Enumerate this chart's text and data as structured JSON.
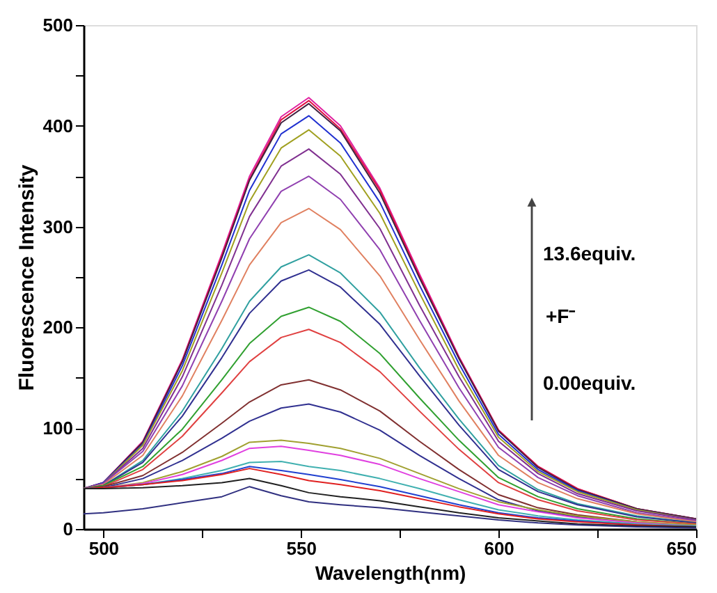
{
  "chart_data": {
    "type": "line",
    "xlabel": "Wavelength(nm)",
    "ylabel": "Fluorescence Intensity",
    "x": [
      495,
      500,
      510,
      520,
      530,
      537,
      545,
      552,
      560,
      570,
      580,
      590,
      600,
      610,
      620,
      635,
      650
    ],
    "xlim": [
      495,
      650
    ],
    "xticks": [
      500,
      {
        "value": 525,
        "label": null
      },
      550,
      {
        "value": 575,
        "label": null
      },
      600,
      {
        "value": 625,
        "label": null
      },
      650
    ],
    "ylim": [
      0,
      500
    ],
    "yticks": [
      0,
      {
        "value": 50,
        "label": null
      },
      100,
      {
        "value": 150,
        "label": null
      },
      200,
      {
        "value": 250,
        "label": null
      },
      300,
      {
        "value": 350,
        "label": null
      },
      400,
      {
        "value": 450,
        "label": null
      },
      500
    ],
    "grid": false,
    "marker": "none",
    "line_style": "solid",
    "annotations": [
      "13.6equiv.",
      "+F⁻",
      "0.00equiv."
    ],
    "series": [
      {
        "color": "#e020a0",
        "values": [
          40,
          46,
          87,
          168,
          273,
          350,
          409,
          428,
          400,
          338,
          253,
          171,
          98,
          62,
          40,
          20,
          10
        ]
      },
      {
        "color": "#e01040",
        "values": [
          40,
          46,
          86,
          167,
          271,
          347,
          406,
          425,
          397,
          336,
          251,
          170,
          98,
          62,
          40,
          20,
          10
        ]
      },
      {
        "color": "#402040",
        "values": [
          40,
          46,
          86,
          166,
          269,
          346,
          403,
          422,
          395,
          333,
          249,
          169,
          97,
          61,
          39,
          20,
          10
        ]
      },
      {
        "color": "#2030d0",
        "values": [
          40,
          46,
          84,
          162,
          262,
          336,
          392,
          410,
          383,
          324,
          242,
          164,
          94,
          59,
          38,
          19,
          9
        ]
      },
      {
        "color": "#a0a020",
        "values": [
          40,
          45,
          83,
          157,
          254,
          325,
          378,
          396,
          370,
          313,
          234,
          158,
          91,
          57,
          37,
          19,
          9
        ]
      },
      {
        "color": "#803090",
        "values": [
          40,
          45,
          80,
          151,
          242,
          310,
          360,
          377,
          352,
          298,
          222,
          151,
          87,
          55,
          35,
          18,
          9
        ]
      },
      {
        "color": "#9040b0",
        "values": [
          40,
          45,
          77,
          142,
          226,
          288,
          335,
          350,
          327,
          277,
          207,
          140,
          81,
          51,
          33,
          16,
          8
        ]
      },
      {
        "color": "#e08060",
        "values": [
          40,
          44,
          73,
          132,
          207,
          262,
          304,
          318,
          297,
          251,
          188,
          127,
          73,
          46,
          30,
          15,
          7
        ]
      },
      {
        "color": "#30a0a0",
        "values": [
          40,
          43,
          68,
          117,
          179,
          226,
          260,
          272,
          254,
          215,
          160,
          109,
          63,
          39,
          25,
          13,
          6
        ]
      },
      {
        "color": "#303090",
        "values": [
          40,
          43,
          66,
          112,
          170,
          214,
          246,
          257,
          240,
          203,
          152,
          103,
          59,
          37,
          24,
          12,
          6
        ]
      },
      {
        "color": "#30a030",
        "values": [
          40,
          43,
          62,
          99,
          148,
          184,
          211,
          220,
          206,
          174,
          130,
          88,
          51,
          32,
          20,
          10,
          5
        ]
      },
      {
        "color": "#e04040",
        "values": [
          40,
          42,
          59,
          92,
          135,
          166,
          190,
          198,
          185,
          156,
          117,
          79,
          46,
          29,
          18,
          9,
          5
        ]
      },
      {
        "color": "#803030",
        "values": [
          40,
          42,
          53,
          76,
          105,
          126,
          143,
          148,
          138,
          117,
          87,
          59,
          34,
          21,
          14,
          7,
          3
        ]
      },
      {
        "color": "#303090",
        "values": [
          40,
          41,
          50,
          68,
          90,
          107,
          120,
          124,
          116,
          98,
          73,
          50,
          29,
          18,
          12,
          6,
          3
        ]
      },
      {
        "color": "#a0a030",
        "values": [
          40,
          41,
          46,
          57,
          72,
          86,
          88,
          85,
          80,
          70,
          55,
          40,
          27,
          19,
          13,
          7,
          4
        ]
      },
      {
        "color": "#e040e0",
        "values": [
          40,
          41,
          45,
          54,
          68,
          80,
          82,
          78,
          73,
          64,
          50,
          37,
          24,
          17,
          11,
          6,
          3
        ]
      },
      {
        "color": "#40b0b0",
        "values": [
          40,
          41,
          44,
          50,
          58,
          66,
          67,
          62,
          58,
          50,
          40,
          29,
          19,
          13,
          9,
          5,
          3
        ]
      },
      {
        "color": "#2040d0",
        "values": [
          40,
          41,
          44,
          49,
          55,
          62,
          58,
          54,
          49,
          42,
          33,
          24,
          16,
          11,
          8,
          4,
          2
        ]
      },
      {
        "color": "#e02020",
        "values": [
          40,
          41,
          44,
          48,
          54,
          60,
          54,
          48,
          44,
          38,
          30,
          22,
          15,
          10,
          7,
          4,
          2
        ]
      },
      {
        "color": "#202020",
        "values": [
          40,
          40,
          41,
          43,
          46,
          50,
          43,
          36,
          32,
          28,
          22,
          16,
          11,
          8,
          5,
          3,
          2
        ]
      },
      {
        "color": "#303080",
        "values": [
          15,
          16,
          20,
          26,
          32,
          42,
          33,
          27,
          24,
          21,
          17,
          13,
          9,
          6,
          4,
          2,
          1
        ]
      }
    ]
  }
}
